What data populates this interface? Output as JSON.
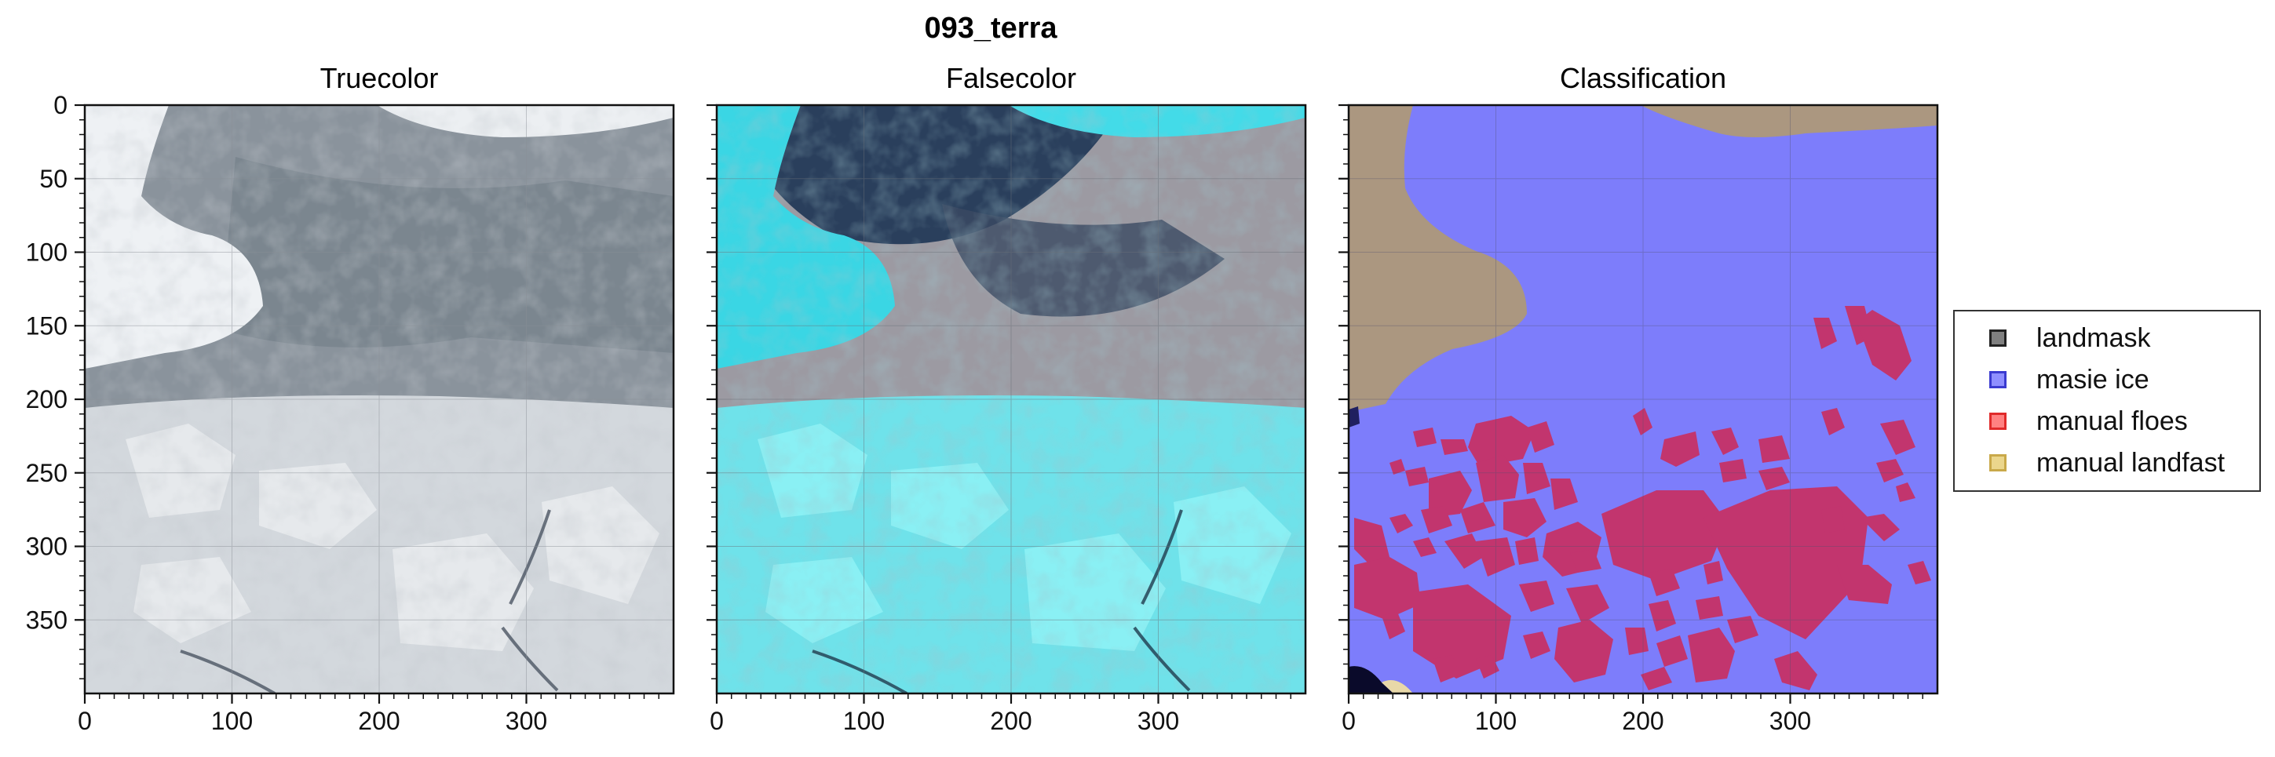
{
  "figure_title": "093_terra",
  "chart_data": [
    {
      "type": "image",
      "title": "Truecolor",
      "xlim": [
        0,
        400
      ],
      "ylim": [
        400,
        0
      ],
      "xticks": [
        0,
        100,
        200,
        300
      ],
      "yticks": [
        0,
        50,
        100,
        150,
        200,
        250,
        300,
        350
      ],
      "grid": true
    },
    {
      "type": "image",
      "title": "Falsecolor",
      "xlim": [
        0,
        400
      ],
      "ylim": [
        400,
        0
      ],
      "xticks": [
        0,
        100,
        200,
        300
      ],
      "yticks": [
        0,
        50,
        100,
        150,
        200,
        250,
        300,
        350
      ],
      "grid": true
    },
    {
      "type": "image",
      "title": "Classification",
      "xlim": [
        0,
        400
      ],
      "ylim": [
        400,
        0
      ],
      "xticks": [
        0,
        100,
        200,
        300
      ],
      "yticks": [
        0,
        50,
        100,
        150,
        200,
        250,
        300,
        350
      ],
      "grid": true,
      "legend_position": "right",
      "legend": [
        {
          "label": "landmask",
          "color": "#555555"
        },
        {
          "label": "masie ice",
          "color": "#7b7bff"
        },
        {
          "label": "manual floes",
          "color": "#ff6b6b"
        },
        {
          "label": "manual landfast",
          "color": "#e9d27f"
        }
      ]
    }
  ]
}
